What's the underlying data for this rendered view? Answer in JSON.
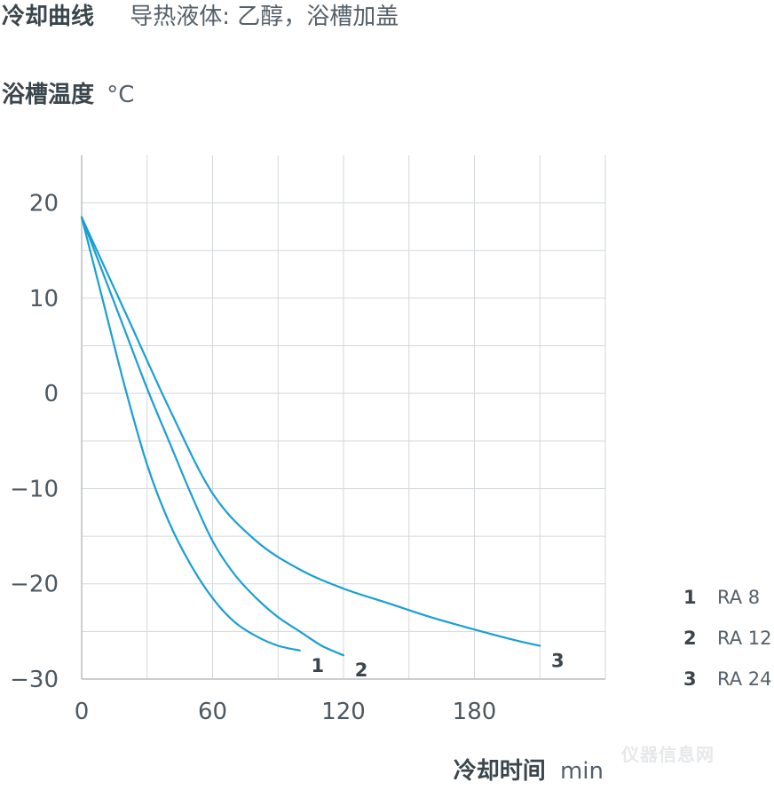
{
  "header": {
    "title": "冷却曲线",
    "subtitle": "导热液体: 乙醇，浴槽加盖"
  },
  "watermark_text": "仪器信息网",
  "chart_data": {
    "type": "line",
    "ylabel": "浴槽温度",
    "yunit": "°C",
    "xlabel": "冷却时间",
    "xunit": "min",
    "xlim": [
      0,
      240
    ],
    "ylim": [
      -30,
      25
    ],
    "xticks": [
      0,
      60,
      120,
      180
    ],
    "yticks": [
      20,
      10,
      0,
      -10,
      -20,
      -30
    ],
    "xgrid": [
      0,
      30,
      60,
      90,
      120,
      150,
      180,
      210,
      240
    ],
    "ygrid": [
      20,
      15,
      10,
      5,
      0,
      -5,
      -10,
      -15,
      -20,
      -25,
      -30
    ],
    "line_color": "#1a9fd4",
    "grid_color": "#d3d7da",
    "series": [
      {
        "name": "RA 8",
        "label": "1",
        "x": [
          0,
          10,
          20,
          30,
          40,
          50,
          60,
          70,
          80,
          90,
          100
        ],
        "y": [
          18.5,
          9.5,
          0.5,
          -7.5,
          -13.5,
          -18,
          -21.5,
          -24,
          -25.5,
          -26.5,
          -27
        ]
      },
      {
        "name": "RA 12",
        "label": "2",
        "x": [
          0,
          10,
          20,
          30,
          40,
          50,
          60,
          70,
          80,
          90,
          100,
          110,
          120
        ],
        "y": [
          18.5,
          12.5,
          6.5,
          0.5,
          -5,
          -10.5,
          -15.5,
          -19,
          -21.5,
          -23.5,
          -25,
          -26.5,
          -27.5
        ]
      },
      {
        "name": "RA 24",
        "label": "3",
        "x": [
          0,
          20,
          40,
          60,
          80,
          100,
          120,
          140,
          160,
          180,
          200,
          210
        ],
        "y": [
          18.5,
          8.5,
          -1.5,
          -10.5,
          -15.5,
          -18.5,
          -20.5,
          -22,
          -23.5,
          -24.8,
          -26,
          -26.5
        ]
      }
    ],
    "legend": [
      {
        "num": "1",
        "name": "RA 8"
      },
      {
        "num": "2",
        "name": "RA 12"
      },
      {
        "num": "3",
        "name": "RA 24"
      }
    ],
    "legend_position": "right"
  }
}
